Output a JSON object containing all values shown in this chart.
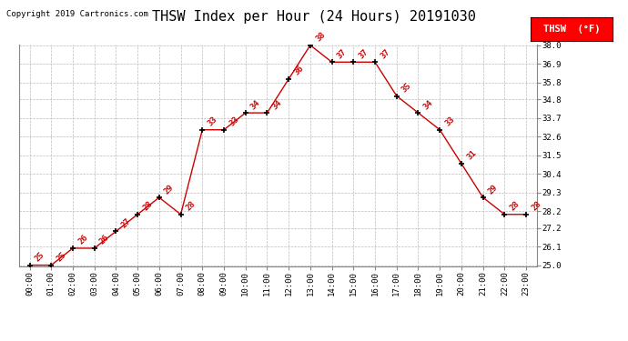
{
  "title": "THSW Index per Hour (24 Hours) 20191030",
  "copyright": "Copyright 2019 Cartronics.com",
  "legend_label": "THSW  (°F)",
  "hours": [
    0,
    1,
    2,
    3,
    4,
    5,
    6,
    7,
    8,
    9,
    10,
    11,
    12,
    13,
    14,
    15,
    16,
    17,
    18,
    19,
    20,
    21,
    22,
    23
  ],
  "values": [
    25,
    25,
    26,
    26,
    27,
    28,
    29,
    28,
    33,
    33,
    34,
    34,
    36,
    38,
    37,
    37,
    37,
    35,
    34,
    33,
    31,
    29,
    28,
    28
  ],
  "line_color": "#cc0000",
  "marker_color": "#000000",
  "bg_color": "#ffffff",
  "grid_color": "#bbbbbb",
  "title_color": "#000000",
  "copyright_color": "#000000",
  "label_color": "#cc0000",
  "ylim_min": 25.0,
  "ylim_max": 38.0,
  "yticks": [
    25.0,
    26.1,
    27.2,
    28.2,
    29.3,
    30.4,
    31.5,
    32.6,
    33.7,
    34.8,
    35.8,
    36.9,
    38.0
  ],
  "title_fontsize": 11,
  "copyright_fontsize": 6.5,
  "legend_fontsize": 7.5,
  "label_fontsize": 6.5,
  "tick_fontsize": 6.5,
  "ytick_fontsize": 6.5
}
